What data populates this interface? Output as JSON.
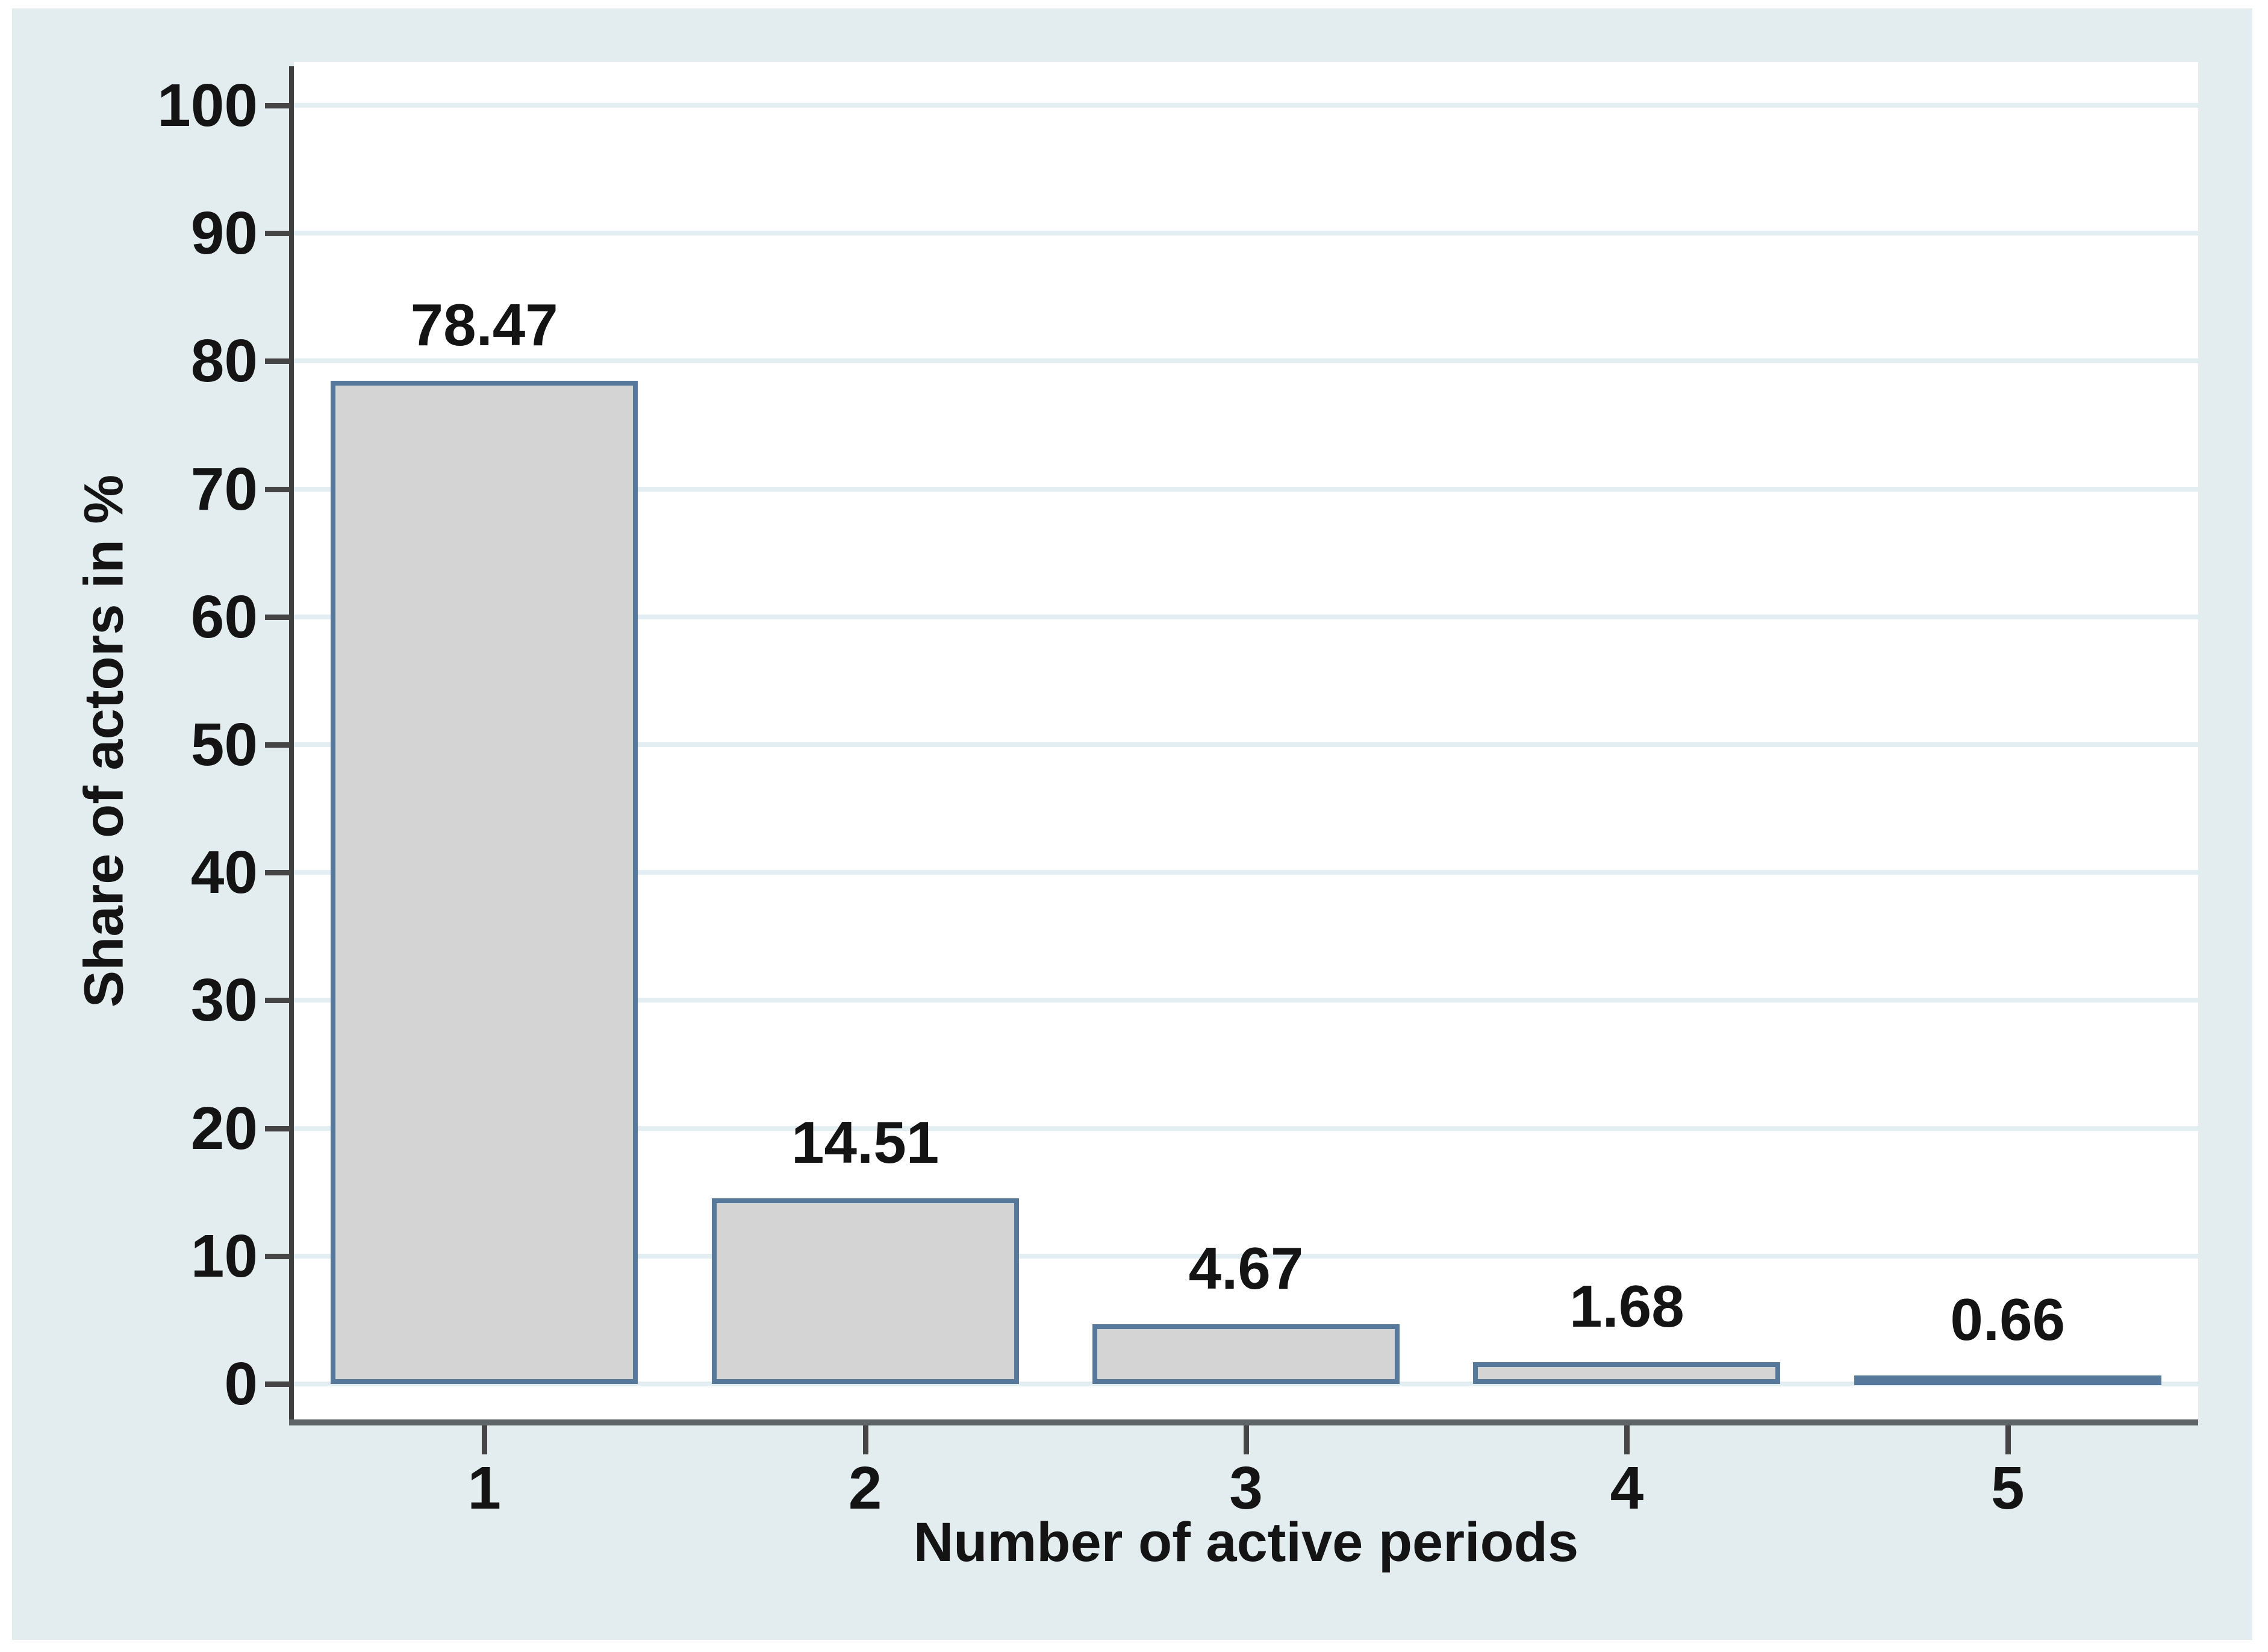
{
  "figure": {
    "page_background": "#ffffff",
    "chart_background": "#e3edef",
    "plot_background": "#ffffff"
  },
  "chart_data": {
    "type": "bar",
    "title": "",
    "categories": [
      "1",
      "2",
      "3",
      "4",
      "5"
    ],
    "values": [
      78.47,
      14.51,
      4.67,
      1.68,
      0.66
    ],
    "value_labels": [
      "78.47",
      "14.51",
      "4.67",
      "1.68",
      "0.66"
    ],
    "xlabel": "Number of active periods",
    "ylabel": "Share of actors in %",
    "ylim": [
      0,
      100
    ],
    "yticks": [
      0,
      10,
      20,
      30,
      40,
      50,
      60,
      70,
      80,
      90,
      100
    ],
    "ytick_labels": [
      "0",
      "10",
      "20",
      "30",
      "40",
      "50",
      "60",
      "70",
      "80",
      "90",
      "100"
    ],
    "grid": "horizontal",
    "legend_position": "none",
    "bar_fill": "#d4d4d4",
    "bar_border": "#56789a"
  },
  "colors": {
    "gridline": "#e3eef2",
    "y_axis_line": "#3f3f3f",
    "x_axis_line": "#5f6466",
    "tick_mark": "#454545",
    "text": "#141414"
  }
}
